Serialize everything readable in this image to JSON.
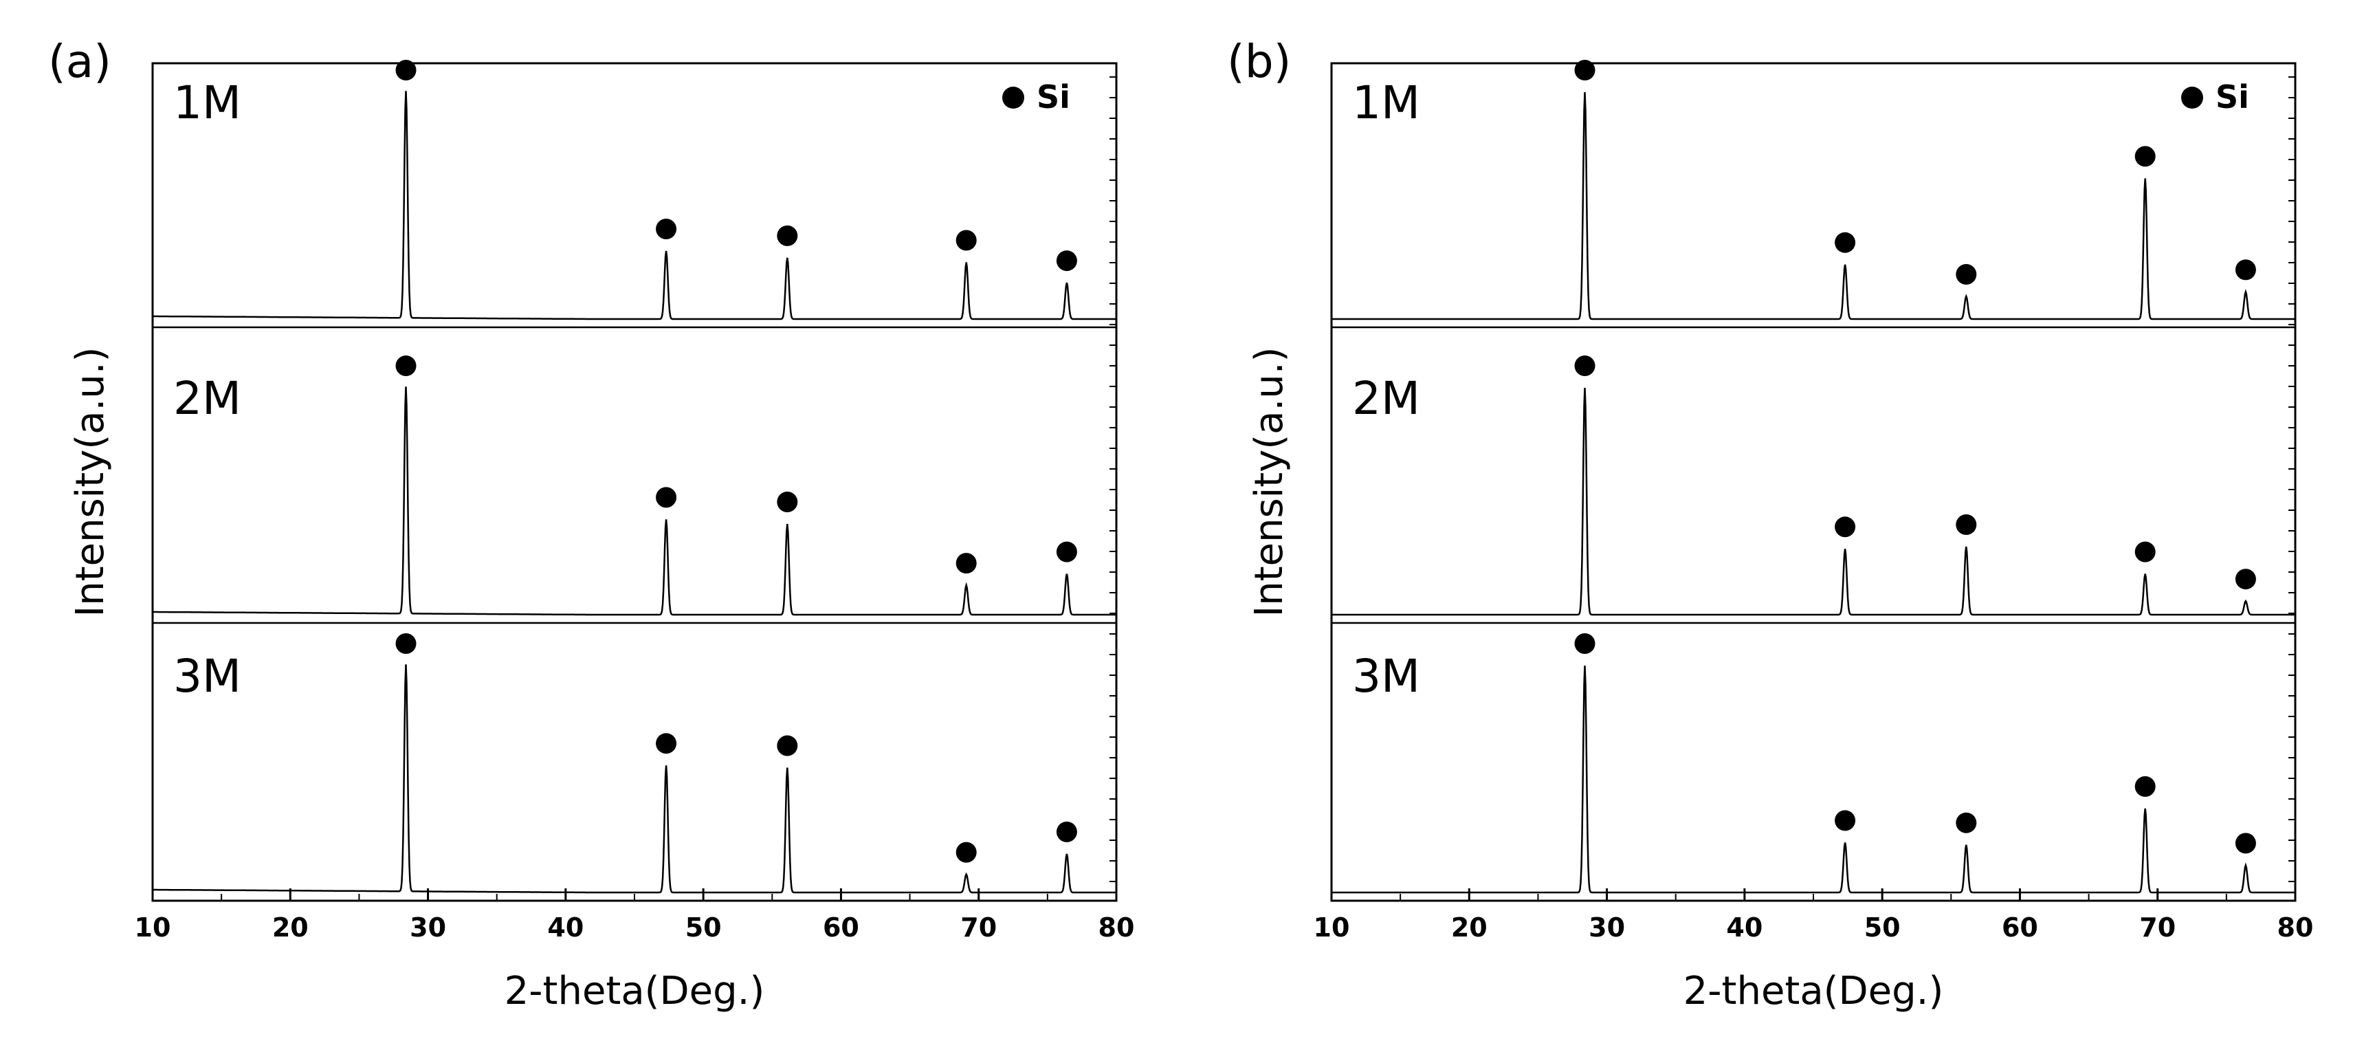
{
  "figure": {
    "panels": [
      "a",
      "b"
    ]
  },
  "chart_data": [
    {
      "type": "line",
      "panel_label": "(a)",
      "title": "",
      "xlabel": "2-theta(Deg.)",
      "ylabel": "Intensity(a.u.)",
      "xlim": [
        10,
        80
      ],
      "x_ticks": [
        "10",
        "20",
        "30",
        "40",
        "50",
        "60",
        "70",
        "80"
      ],
      "legend": {
        "marker": "filled-circle",
        "label": "Si",
        "position": "top-right"
      },
      "grid": false,
      "series": [
        {
          "name": "1M",
          "baseline_start": 0.05,
          "baseline_end": 0.0,
          "peaks": [
            {
              "x": 28.4,
              "intensity": 1.0
            },
            {
              "x": 47.3,
              "intensity": 0.3
            },
            {
              "x": 56.1,
              "intensity": 0.27
            },
            {
              "x": 69.1,
              "intensity": 0.25
            },
            {
              "x": 76.4,
              "intensity": 0.16
            }
          ]
        },
        {
          "name": "2M",
          "baseline_start": 0.05,
          "baseline_end": 0.0,
          "peaks": [
            {
              "x": 28.4,
              "intensity": 1.0
            },
            {
              "x": 47.3,
              "intensity": 0.42
            },
            {
              "x": 56.1,
              "intensity": 0.4
            },
            {
              "x": 69.1,
              "intensity": 0.13
            },
            {
              "x": 76.4,
              "intensity": 0.18
            }
          ]
        },
        {
          "name": "3M",
          "baseline_start": 0.05,
          "baseline_end": 0.0,
          "peaks": [
            {
              "x": 28.4,
              "intensity": 1.0
            },
            {
              "x": 47.3,
              "intensity": 0.56
            },
            {
              "x": 56.1,
              "intensity": 0.55
            },
            {
              "x": 69.1,
              "intensity": 0.08
            },
            {
              "x": 76.4,
              "intensity": 0.17
            }
          ]
        }
      ]
    },
    {
      "type": "line",
      "panel_label": "(b)",
      "title": "",
      "xlabel": "2-theta(Deg.)",
      "ylabel": "Intensity(a.u.)",
      "xlim": [
        10,
        80
      ],
      "x_ticks": [
        "10",
        "20",
        "30",
        "40",
        "50",
        "60",
        "70",
        "80"
      ],
      "legend": {
        "marker": "filled-circle",
        "label": "Si",
        "position": "top-right"
      },
      "grid": false,
      "series": [
        {
          "name": "1M",
          "baseline_start": 0.0,
          "baseline_end": 0.0,
          "peaks": [
            {
              "x": 28.4,
              "intensity": 1.0
            },
            {
              "x": 47.3,
              "intensity": 0.24
            },
            {
              "x": 56.1,
              "intensity": 0.1
            },
            {
              "x": 69.1,
              "intensity": 0.62
            },
            {
              "x": 76.4,
              "intensity": 0.12
            }
          ]
        },
        {
          "name": "2M",
          "baseline_start": 0.0,
          "baseline_end": 0.0,
          "peaks": [
            {
              "x": 28.4,
              "intensity": 1.0
            },
            {
              "x": 47.3,
              "intensity": 0.29
            },
            {
              "x": 56.1,
              "intensity": 0.3
            },
            {
              "x": 69.1,
              "intensity": 0.18
            },
            {
              "x": 76.4,
              "intensity": 0.06
            }
          ]
        },
        {
          "name": "3M",
          "baseline_start": 0.0,
          "baseline_end": 0.0,
          "peaks": [
            {
              "x": 28.4,
              "intensity": 1.0
            },
            {
              "x": 47.3,
              "intensity": 0.22
            },
            {
              "x": 56.1,
              "intensity": 0.21
            },
            {
              "x": 69.1,
              "intensity": 0.37
            },
            {
              "x": 76.4,
              "intensity": 0.12
            }
          ]
        }
      ]
    }
  ]
}
